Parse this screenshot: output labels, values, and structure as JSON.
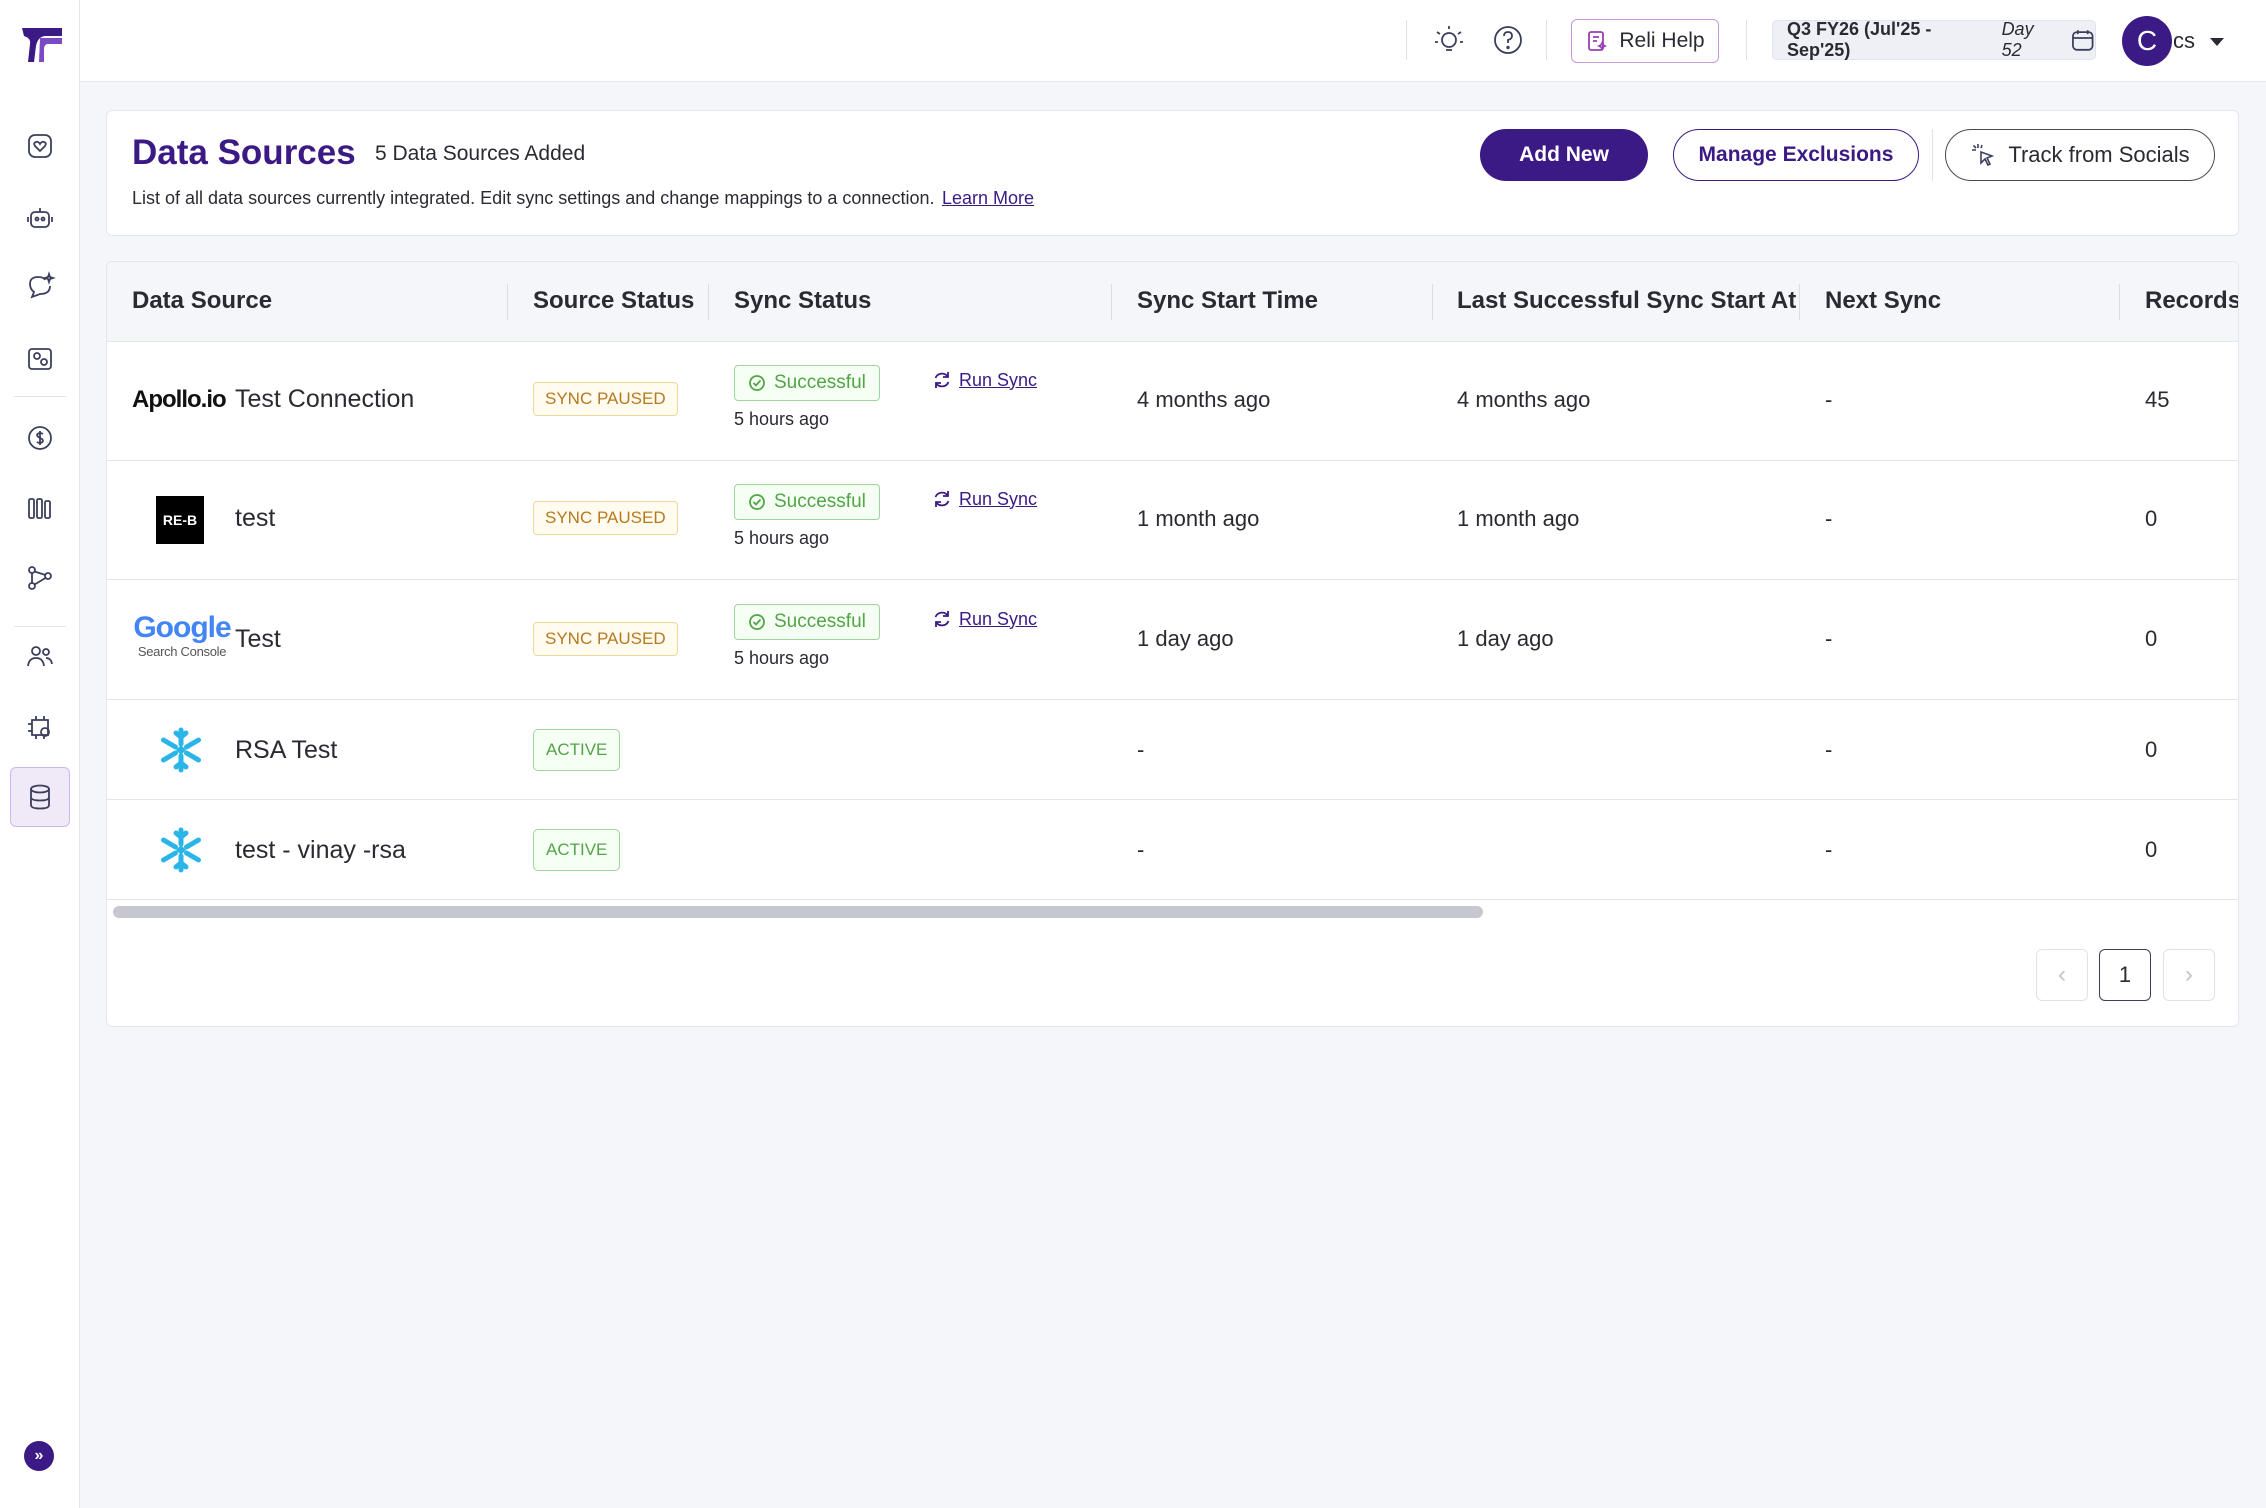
{
  "topbar": {
    "help_label": "Reli Help",
    "quarter_label": "Q3 FY26 (Jul'25 - Sep'25)",
    "quarter_day": "Day 52",
    "avatar_initial": "C",
    "user_name": "cs"
  },
  "header": {
    "title": "Data Sources",
    "count": "5 Data Sources Added",
    "description": "List of all data sources currently integrated. Edit sync settings and change mappings to a connection.",
    "learn_more": "Learn More",
    "add_new": "Add New",
    "manage_exclusions": "Manage Exclusions",
    "track_socials": "Track from Socials"
  },
  "table": {
    "columns": [
      "Data Source",
      "Source Status",
      "Sync Status",
      "Sync Start Time",
      "Last Successful Sync Start At",
      "Next Sync",
      "Records"
    ],
    "rows": [
      {
        "logo": "Apollo.io",
        "name": "Test Connection",
        "source_status": "SYNC PAUSED",
        "sync_status": "Successful",
        "sync_ago": "5 hours ago",
        "run_sync": "Run Sync",
        "sync_start": "4 months ago",
        "last_success": "4 months ago",
        "next_sync": "-",
        "records": "45"
      },
      {
        "logo": "RE-B",
        "name": "test",
        "source_status": "SYNC PAUSED",
        "sync_status": "Successful",
        "sync_ago": "5 hours ago",
        "run_sync": "Run Sync",
        "sync_start": "1 month ago",
        "last_success": "1 month ago",
        "next_sync": "-",
        "records": "0"
      },
      {
        "logo": "Google",
        "logo_sub": "Search Console",
        "name": "Test",
        "source_status": "SYNC PAUSED",
        "sync_status": "Successful",
        "sync_ago": "5 hours ago",
        "run_sync": "Run Sync",
        "sync_start": "1 day ago",
        "last_success": "1 day ago",
        "next_sync": "-",
        "records": "0"
      },
      {
        "logo": "snowflake-icon",
        "name": "RSA Test",
        "source_status": "ACTIVE",
        "sync_start": "-",
        "next_sync": "-",
        "records": "0"
      },
      {
        "logo": "snowflake-icon",
        "name": "test - vinay -rsa",
        "source_status": "ACTIVE",
        "sync_start": "-",
        "next_sync": "-",
        "records": "0"
      }
    ]
  },
  "pagination": {
    "prev": "‹",
    "current": "1",
    "next": "›"
  },
  "colors": {
    "brand": "#3b1a86",
    "success": "#52a447",
    "warning": "#b7791f"
  }
}
